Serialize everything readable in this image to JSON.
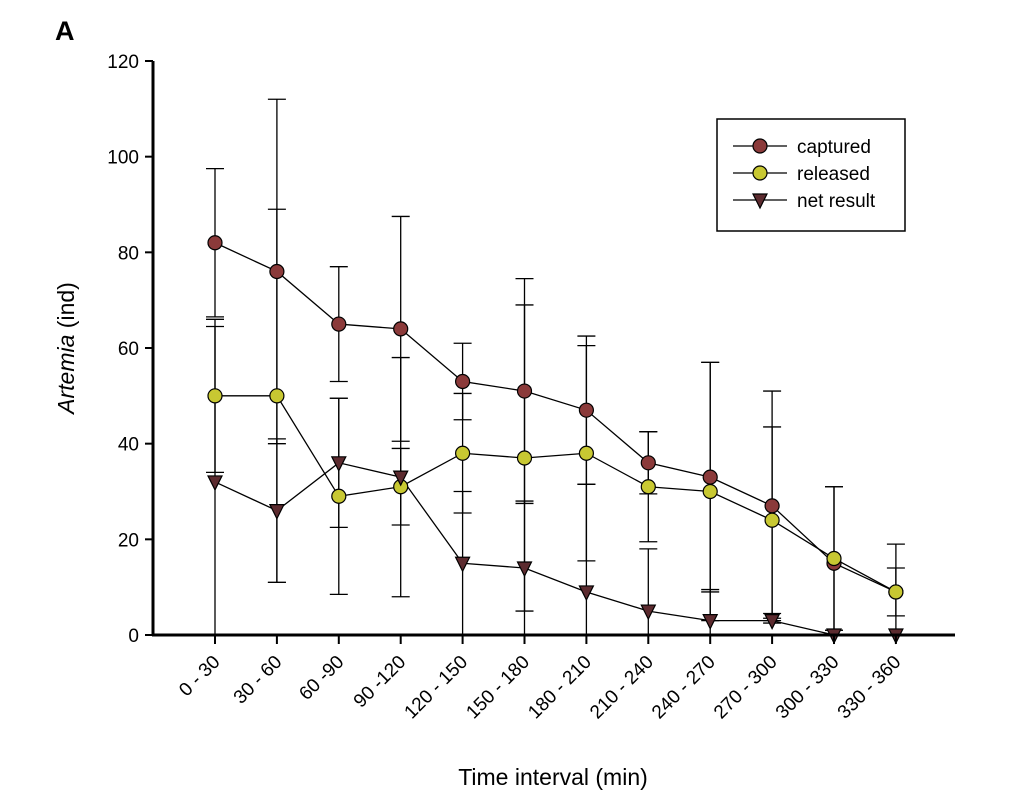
{
  "panel_label": "A",
  "chart_data": {
    "type": "line",
    "xlabel": "Time interval (min)",
    "ylabel_italic": "Artemia",
    "ylabel_rest": " (ind)",
    "ylim": [
      0,
      120
    ],
    "yticks": [
      0,
      20,
      40,
      60,
      80,
      100,
      120
    ],
    "grid": false,
    "legend_position": "top-right",
    "categories": [
      "0 - 30",
      "30 - 60",
      "60 -90",
      "90 -120",
      "120 - 150",
      "150 - 180",
      "180 - 210",
      "210 - 240",
      "240 - 270",
      "270 - 300",
      "300 - 330",
      "330 - 360"
    ],
    "series": [
      {
        "name": "captured",
        "marker": "circle",
        "color": "#8b3a3a",
        "values": [
          82,
          76,
          65,
          64,
          53,
          51,
          47,
          36,
          33,
          27,
          15,
          9
        ],
        "error": [
          15.5,
          36,
          12,
          23.5,
          8,
          23.5,
          15.5,
          6.5,
          24,
          24,
          16,
          10
        ]
      },
      {
        "name": "released",
        "marker": "circle",
        "color": "#c8c832",
        "values": [
          50,
          50,
          29,
          31,
          38,
          37,
          38,
          31,
          30,
          24,
          16,
          9
        ],
        "error": [
          16,
          39,
          20.5,
          8,
          12.5,
          32,
          22.5,
          11.5,
          27,
          19.5,
          15,
          5
        ]
      },
      {
        "name": "net result",
        "marker": "triangle-down",
        "color": "#5c2b2f",
        "values": [
          32,
          26,
          36,
          33,
          15,
          14,
          9,
          5,
          3,
          3,
          0,
          0
        ],
        "error": [
          32.5,
          15,
          13.5,
          25,
          15,
          14,
          22.5,
          13,
          6.5,
          0.5,
          1,
          0
        ]
      }
    ]
  }
}
